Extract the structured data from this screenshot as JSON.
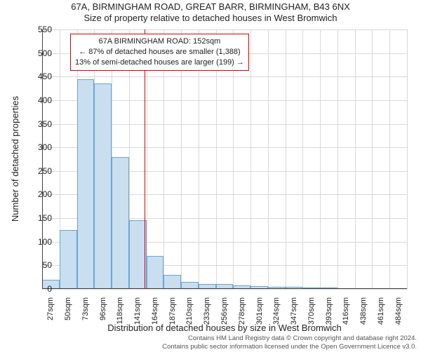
{
  "title_line1": "67A, BIRMINGHAM ROAD, GREAT BARR, BIRMINGHAM, B43 6NX",
  "title_line2": "Size of property relative to detached houses in West Bromwich",
  "y_axis_label": "Number of detached properties",
  "x_axis_label": "Distribution of detached houses by size in West Bromwich",
  "footer_line1": "Contains HM Land Registry data © Crown copyright and database right 2024.",
  "footer_line2": "Contains public sector information licensed under the Open Government Licence v3.0.",
  "chart": {
    "type": "histogram",
    "background_color": "#ffffff",
    "grid_color": "#d9d9d9",
    "axis_color": "#404040",
    "bar_fill": "#c9deef",
    "bar_stroke": "#6aa6d6",
    "ref_line_color": "#d60000",
    "ref_line_x_value": 152,
    "anno_border_color": "#d60000",
    "ylim": [
      0,
      550
    ],
    "ytick_step": 50,
    "x_start": 16,
    "x_bin_width": 23,
    "x_tick_labels": [
      "27sqm",
      "50sqm",
      "73sqm",
      "96sqm",
      "118sqm",
      "141sqm",
      "164sqm",
      "187sqm",
      "210sqm",
      "233sqm",
      "256sqm",
      "278sqm",
      "301sqm",
      "324sqm",
      "347sqm",
      "370sqm",
      "393sqm",
      "416sqm",
      "438sqm",
      "461sqm",
      "484sqm"
    ],
    "values": [
      20,
      125,
      445,
      435,
      280,
      145,
      70,
      30,
      15,
      10,
      10,
      8,
      6,
      5,
      4,
      3,
      3,
      2,
      2,
      2,
      2
    ],
    "anno_line1": "67A BIRMINGHAM ROAD: 152sqm",
    "anno_line2": "← 87% of detached houses are smaller (1,388)",
    "anno_line3": "13% of semi-detached houses are larger (199) →"
  }
}
